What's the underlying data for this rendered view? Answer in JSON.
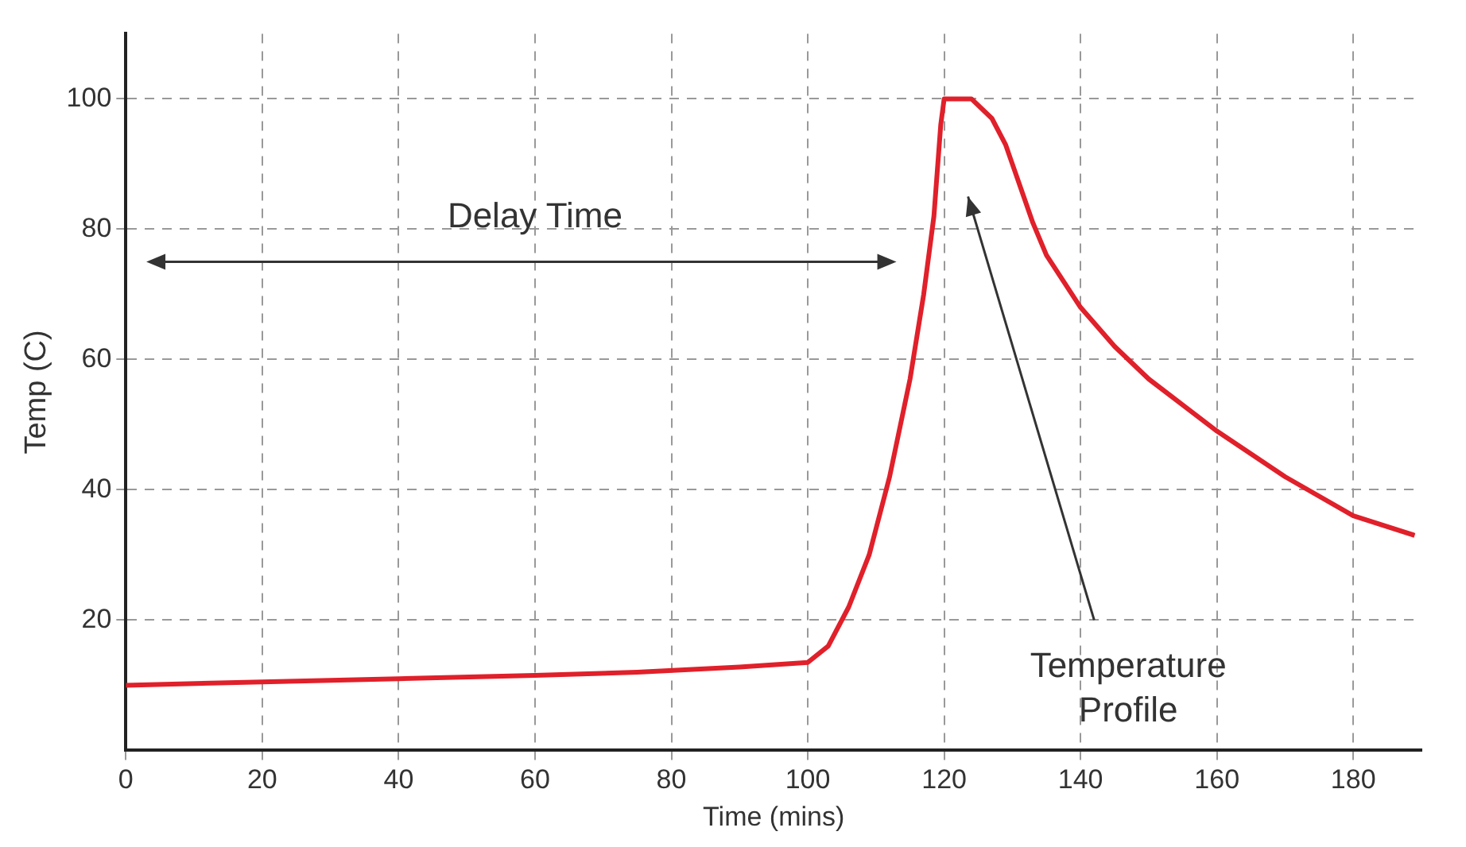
{
  "chart_data": {
    "type": "line",
    "xlabel": "Time (mins)",
    "ylabel": "Temp (C)",
    "xlim": [
      0,
      190
    ],
    "ylim": [
      0,
      110
    ],
    "xticks": [
      0,
      20,
      40,
      60,
      80,
      100,
      120,
      140,
      160,
      180
    ],
    "yticks": [
      20,
      40,
      60,
      80,
      100
    ],
    "grid": true,
    "legend": false,
    "marker": "none",
    "line_style": "solid",
    "series": [
      {
        "color": "#e0202a",
        "x": [
          0,
          20,
          40,
          60,
          75,
          90,
          100,
          103,
          106,
          109,
          112,
          115,
          117,
          118.5,
          119.5,
          120,
          124,
          127,
          129,
          131,
          133,
          135,
          140,
          145,
          150,
          160,
          170,
          180,
          189
        ],
        "values": [
          10,
          10.5,
          11,
          11.5,
          12,
          12.8,
          13.5,
          16,
          22,
          30,
          42,
          57,
          70,
          82,
          96,
          100,
          100,
          97,
          93,
          87,
          81,
          76,
          68,
          62,
          57,
          49,
          42,
          36,
          33
        ]
      }
    ],
    "annotations": [
      "Delay Time",
      "Temperature Profile"
    ]
  }
}
